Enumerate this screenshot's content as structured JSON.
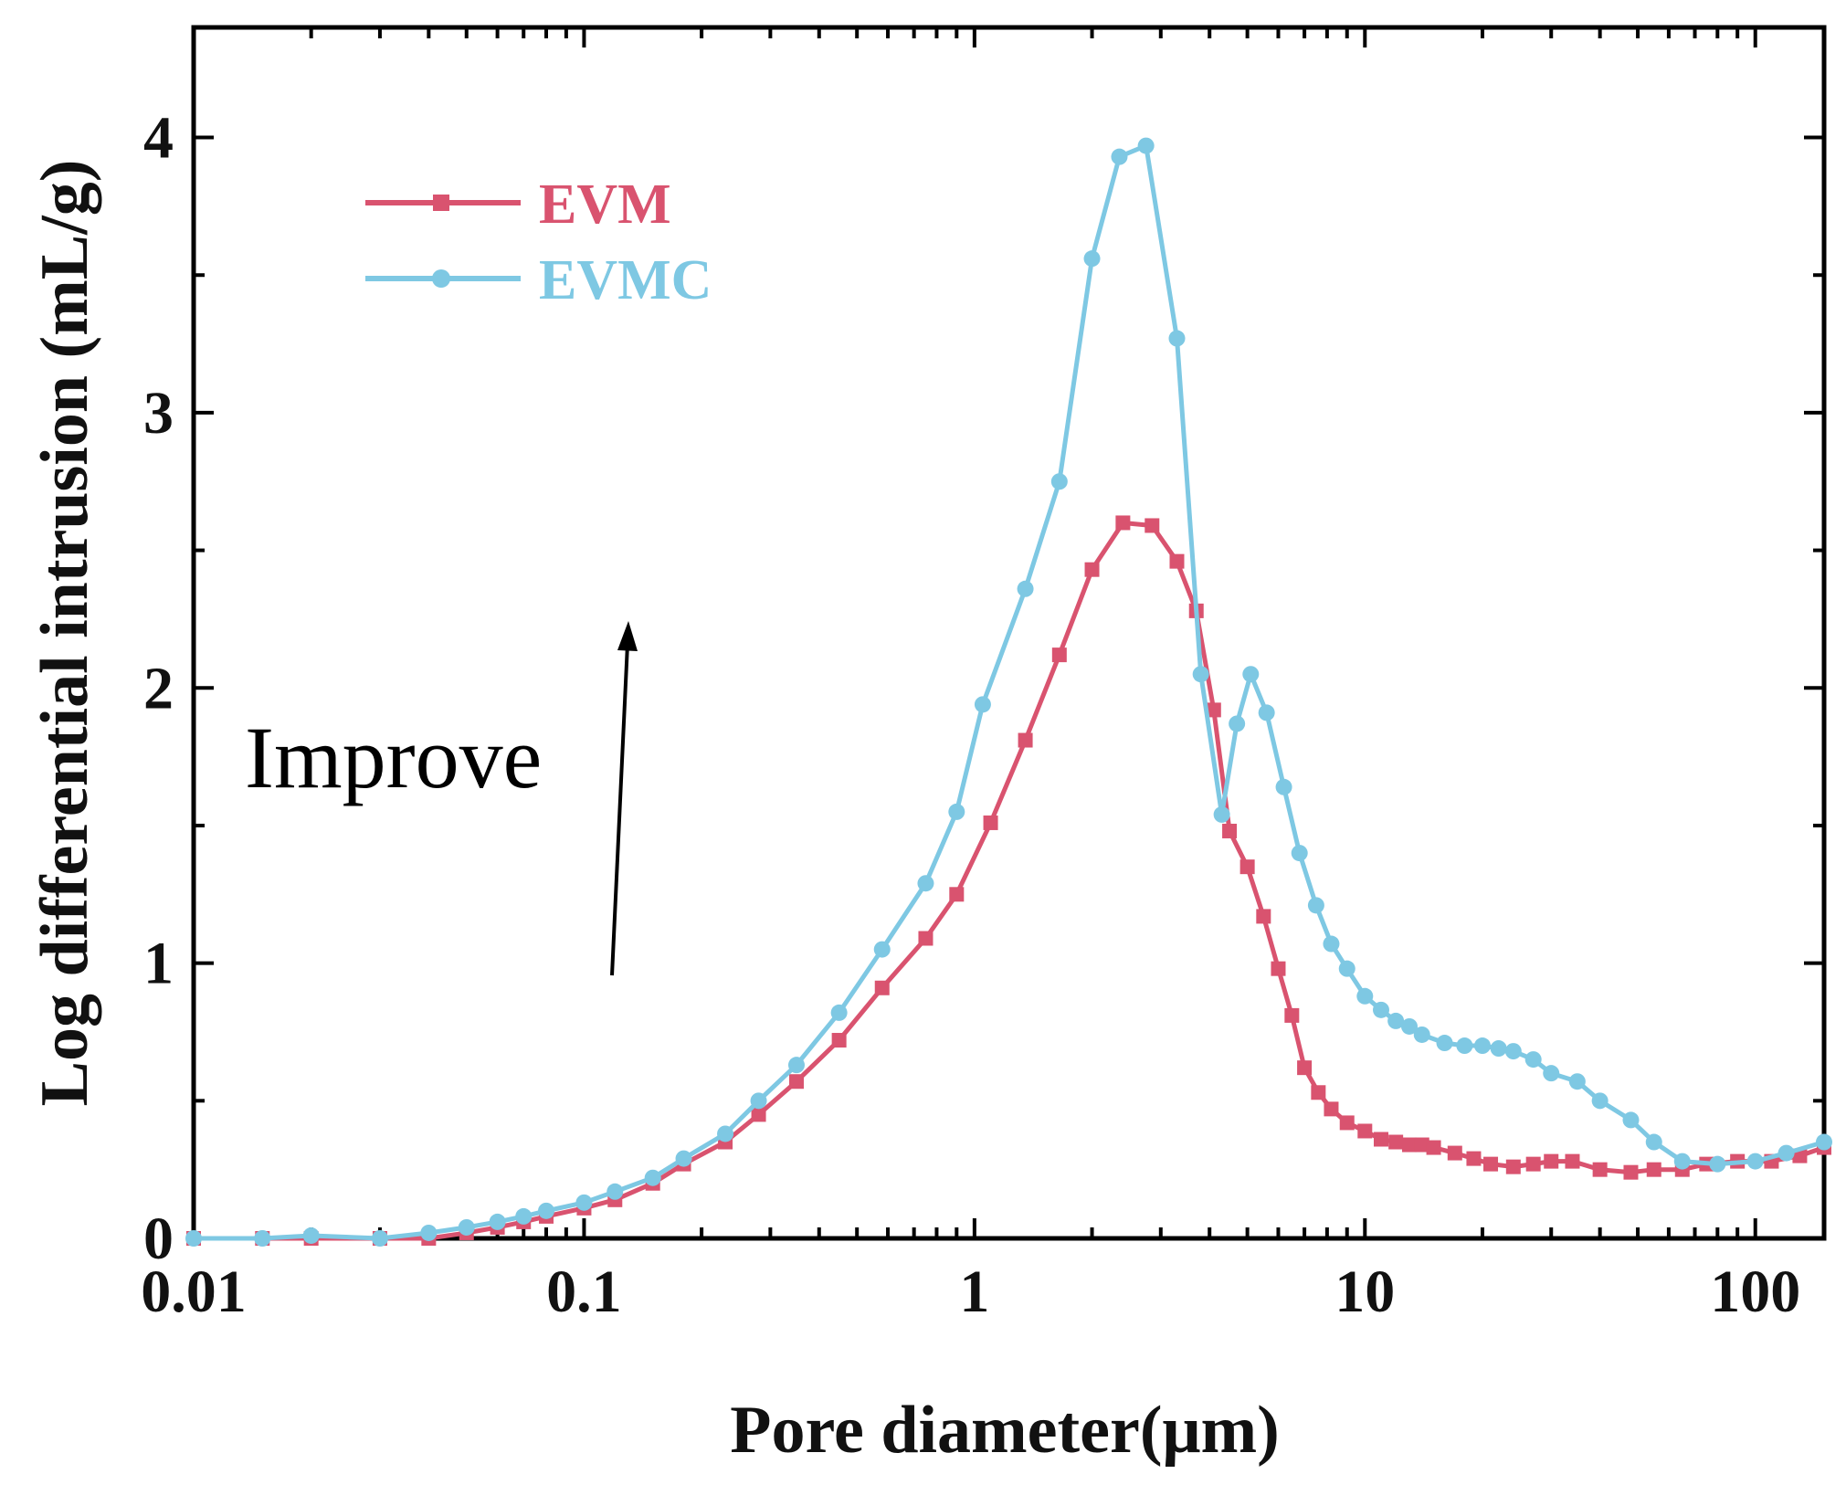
{
  "chart_data": {
    "type": "line",
    "title": "",
    "xlabel": "Pore diameter(μm)",
    "ylabel": "Log differential intrusion (mL/g)",
    "xscale": "log",
    "xlim": [
      0.01,
      150
    ],
    "ylim": [
      0,
      4.4
    ],
    "x_ticks": [
      0.01,
      0.1,
      1,
      10,
      100
    ],
    "x_tick_labels": [
      "0.01",
      "0.1",
      "1",
      "10",
      "100"
    ],
    "y_ticks": [
      0,
      1,
      2,
      3,
      4
    ],
    "y_tick_labels": [
      "0",
      "1",
      "2",
      "3",
      "4"
    ],
    "grid": false,
    "legend_position": "top-left",
    "annotation": {
      "text": "Improve",
      "arrow": "up"
    },
    "series": [
      {
        "name": "EVM",
        "color": "#d9536f",
        "marker": "square",
        "x": [
          0.01,
          0.015,
          0.02,
          0.03,
          0.04,
          0.05,
          0.06,
          0.07,
          0.08,
          0.1,
          0.12,
          0.15,
          0.18,
          0.23,
          0.28,
          0.35,
          0.45,
          0.58,
          0.75,
          0.9,
          1.1,
          1.35,
          1.65,
          2.0,
          2.4,
          2.85,
          3.3,
          3.7,
          4.1,
          4.5,
          5.0,
          5.5,
          6.0,
          6.5,
          7.0,
          7.6,
          8.2,
          9.0,
          10,
          11,
          12,
          13,
          14,
          15,
          17,
          19,
          21,
          24,
          27,
          30,
          34,
          40,
          48,
          55,
          65,
          75,
          90,
          110,
          130,
          150
        ],
        "values": [
          0.0,
          0.0,
          0.0,
          0.0,
          0.0,
          0.02,
          0.04,
          0.06,
          0.08,
          0.11,
          0.14,
          0.2,
          0.27,
          0.35,
          0.45,
          0.57,
          0.72,
          0.91,
          1.09,
          1.25,
          1.51,
          1.81,
          2.12,
          2.43,
          2.6,
          2.59,
          2.46,
          2.28,
          1.92,
          1.48,
          1.35,
          1.17,
          0.98,
          0.81,
          0.62,
          0.53,
          0.47,
          0.42,
          0.39,
          0.36,
          0.35,
          0.34,
          0.34,
          0.33,
          0.31,
          0.29,
          0.27,
          0.26,
          0.27,
          0.28,
          0.28,
          0.25,
          0.24,
          0.25,
          0.25,
          0.27,
          0.28,
          0.28,
          0.3,
          0.33
        ]
      },
      {
        "name": "EVMC",
        "color": "#7ec8e3",
        "marker": "circle",
        "x": [
          0.01,
          0.015,
          0.02,
          0.03,
          0.04,
          0.05,
          0.06,
          0.07,
          0.08,
          0.1,
          0.12,
          0.15,
          0.18,
          0.23,
          0.28,
          0.35,
          0.45,
          0.58,
          0.75,
          0.9,
          1.05,
          1.35,
          1.65,
          2.0,
          2.35,
          2.75,
          3.3,
          3.8,
          4.3,
          4.7,
          5.1,
          5.6,
          6.2,
          6.8,
          7.5,
          8.2,
          9.0,
          10,
          11,
          12,
          13,
          14,
          16,
          18,
          20,
          22,
          24,
          27,
          30,
          35,
          40,
          48,
          55,
          65,
          80,
          100,
          120,
          150
        ],
        "values": [
          0.0,
          0.0,
          0.01,
          0.0,
          0.02,
          0.04,
          0.06,
          0.08,
          0.1,
          0.13,
          0.17,
          0.22,
          0.29,
          0.38,
          0.5,
          0.63,
          0.82,
          1.05,
          1.29,
          1.55,
          1.94,
          2.36,
          2.75,
          3.56,
          3.93,
          3.97,
          3.27,
          2.05,
          1.54,
          1.87,
          2.05,
          1.91,
          1.64,
          1.4,
          1.21,
          1.07,
          0.98,
          0.88,
          0.83,
          0.79,
          0.77,
          0.74,
          0.71,
          0.7,
          0.7,
          0.69,
          0.68,
          0.65,
          0.6,
          0.57,
          0.5,
          0.43,
          0.35,
          0.28,
          0.27,
          0.28,
          0.31,
          0.35
        ]
      }
    ]
  }
}
